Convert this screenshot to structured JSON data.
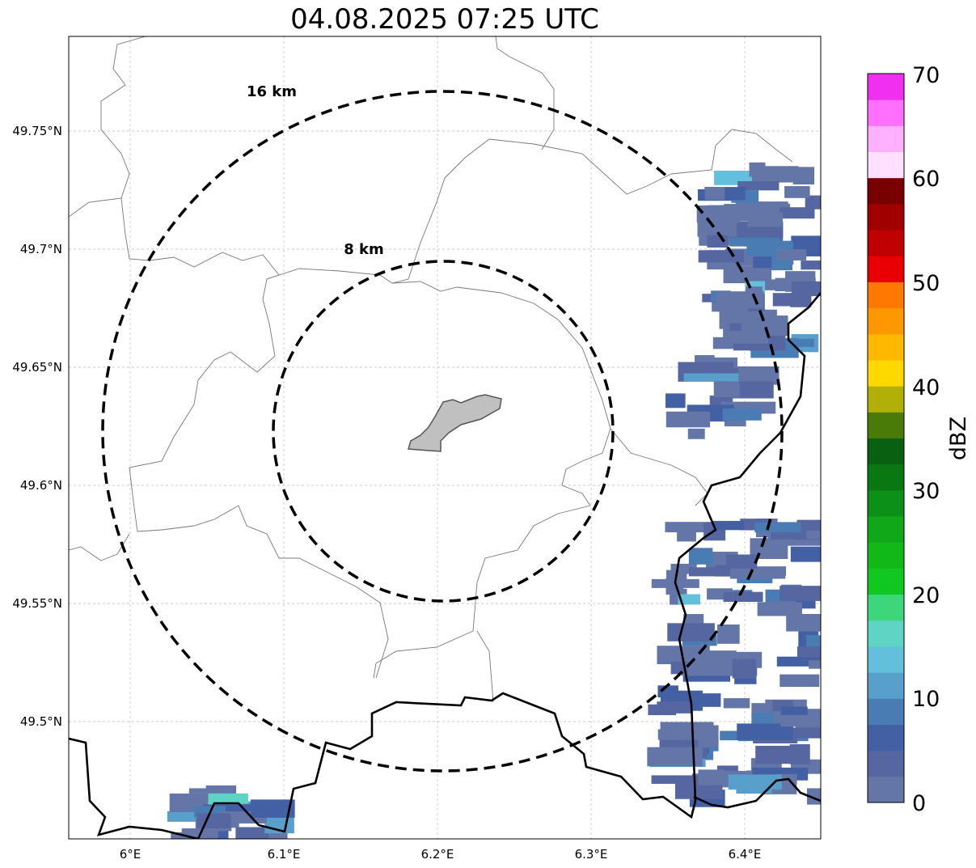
{
  "title": "04.08.2025 07:25 UTC",
  "x_ticks": [
    "6°E",
    "6.1°E",
    "6.2°E",
    "6.3°E",
    "6.4°E"
  ],
  "y_ticks": [
    "49.75°N",
    "49.7°N",
    "49.65°N",
    "49.6°N",
    "49.55°N",
    "49.5°N"
  ],
  "rings": [
    {
      "label": "16 km",
      "radius_km": 16
    },
    {
      "label": "8 km",
      "radius_km": 8
    }
  ],
  "colorbar": {
    "label": "dBZ",
    "ticks": [
      "0",
      "10",
      "20",
      "30",
      "40",
      "50",
      "60",
      "70"
    ],
    "step": 2.5,
    "colors": [
      "#6475a8",
      "#5566a0",
      "#4460a4",
      "#4a7cb4",
      "#589fcb",
      "#63c0dc",
      "#5fd4c4",
      "#3ed67a",
      "#10c820",
      "#10b818",
      "#10a818",
      "#0c9018",
      "#0a7810",
      "#086010",
      "#4a7a08",
      "#b0b008",
      "#ffd800",
      "#ffb800",
      "#ff9800",
      "#ff7800",
      "#e80000",
      "#c00000",
      "#a00000",
      "#780000",
      "#ffe0ff",
      "#ffb0ff",
      "#ff70ff",
      "#f030f0"
    ]
  }
}
